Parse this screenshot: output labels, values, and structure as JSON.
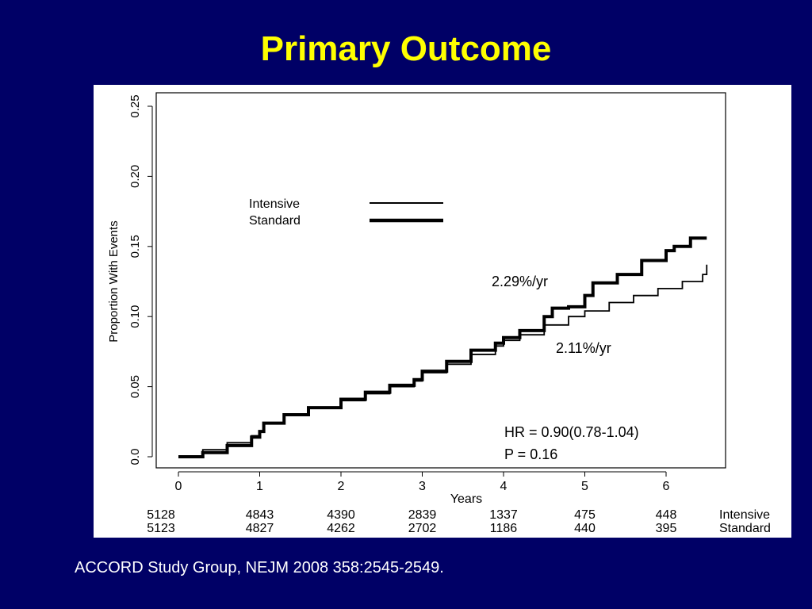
{
  "slide": {
    "title": "Primary Outcome",
    "citation": "ACCORD Study Group, NEJM 2008 358:2545-2549."
  },
  "colors": {
    "background": "#000066",
    "title": "#FFFF00",
    "panel": "#FFFFFF",
    "ink": "#000000"
  },
  "chart_data": {
    "type": "line",
    "step": true,
    "title": "",
    "xlabel": "Years",
    "ylabel": "Proportion With Events",
    "xlim": [
      0,
      6.5
    ],
    "ylim": [
      0,
      0.25
    ],
    "xticks": [
      0,
      1,
      2,
      3,
      4,
      5,
      6
    ],
    "xtick_labels": [
      "0",
      "1",
      "2",
      "3",
      "4",
      "5",
      "6"
    ],
    "yticks": [
      0,
      0.05,
      0.1,
      0.15,
      0.2,
      0.25
    ],
    "ytick_labels": [
      "0.0",
      "0.05",
      "0.10",
      "0.15",
      "0.20",
      "0.25"
    ],
    "grid": false,
    "legend": {
      "placement": "upper-left",
      "entries": [
        "Intensive",
        "Standard"
      ]
    },
    "series": [
      {
        "name": "Intensive",
        "line_weight": "thin",
        "x": [
          0,
          0.3,
          0.6,
          0.9,
          1.0,
          1.05,
          1.3,
          1.6,
          2.0,
          2.3,
          2.6,
          2.9,
          3.0,
          3.3,
          3.6,
          3.9,
          4.0,
          4.2,
          4.5,
          4.8,
          5.0,
          5.3,
          5.6,
          5.9,
          6.2,
          6.45,
          6.5
        ],
        "y": [
          0,
          0.005,
          0.01,
          0.015,
          0.018,
          0.024,
          0.03,
          0.035,
          0.04,
          0.045,
          0.05,
          0.054,
          0.06,
          0.066,
          0.073,
          0.079,
          0.083,
          0.087,
          0.094,
          0.1,
          0.104,
          0.11,
          0.115,
          0.12,
          0.125,
          0.13,
          0.137
        ]
      },
      {
        "name": "Standard",
        "line_weight": "thick",
        "x": [
          0,
          0.3,
          0.6,
          0.9,
          1.0,
          1.05,
          1.3,
          1.6,
          2.0,
          2.3,
          2.6,
          2.9,
          3.0,
          3.3,
          3.6,
          3.9,
          4.0,
          4.2,
          4.5,
          4.6,
          4.8,
          5.0,
          5.1,
          5.4,
          5.7,
          6.0,
          6.1,
          6.3,
          6.5
        ],
        "y": [
          0,
          0.003,
          0.008,
          0.014,
          0.018,
          0.024,
          0.03,
          0.035,
          0.041,
          0.046,
          0.051,
          0.055,
          0.061,
          0.068,
          0.076,
          0.081,
          0.085,
          0.09,
          0.1,
          0.106,
          0.107,
          0.115,
          0.124,
          0.13,
          0.14,
          0.147,
          0.15,
          0.156,
          0.156
        ]
      }
    ],
    "annotations": {
      "standard_rate": "2.29%/yr",
      "intensive_rate": "2.11%/yr",
      "hr": "HR = 0.90(0.78-1.04)",
      "p": "P = 0.16"
    },
    "at_risk": {
      "rows": [
        {
          "label": "Intensive",
          "values": [
            "5128",
            "4843",
            "4390",
            "2839",
            "1337",
            "475",
            "448"
          ]
        },
        {
          "label": "Standard",
          "values": [
            "5123",
            "4827",
            "4262",
            "2702",
            "1186",
            "440",
            "395"
          ]
        }
      ]
    }
  }
}
